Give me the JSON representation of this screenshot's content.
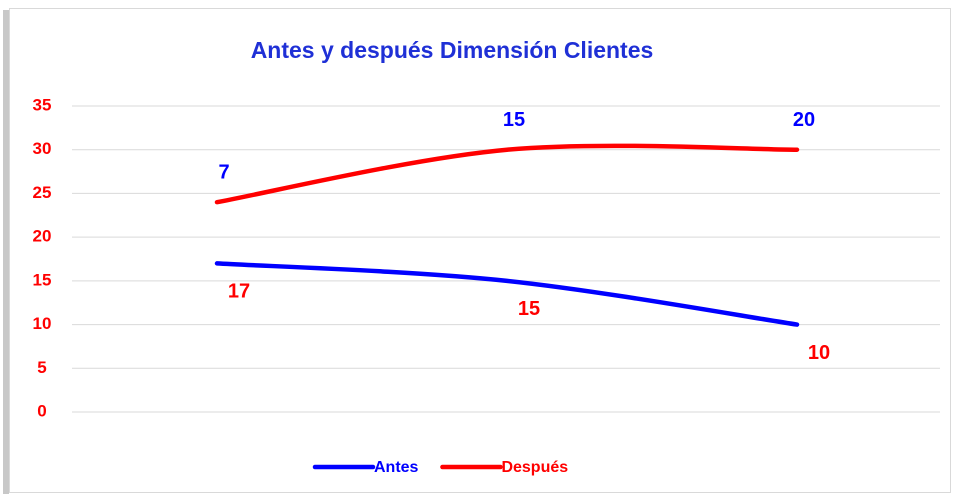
{
  "chart_data": {
    "type": "stacked-line",
    "title": "Antes y después Dimensión Clientes",
    "categories": [
      null,
      null,
      null
    ],
    "series": [
      {
        "name": "Antes",
        "color": "#0000ff",
        "label_color": "#ff0000",
        "values": [
          17,
          15,
          10
        ]
      },
      {
        "name": "Después",
        "color": "#ff0000",
        "label_color": "#0000ff",
        "values": [
          7,
          15,
          20
        ]
      }
    ],
    "ylim": [
      0,
      35
    ],
    "yticks": [
      0,
      5,
      10,
      15,
      20,
      25,
      30,
      35
    ],
    "tick_color": "#ff0000",
    "grid": true,
    "smooth": true,
    "legend": "bottom"
  }
}
